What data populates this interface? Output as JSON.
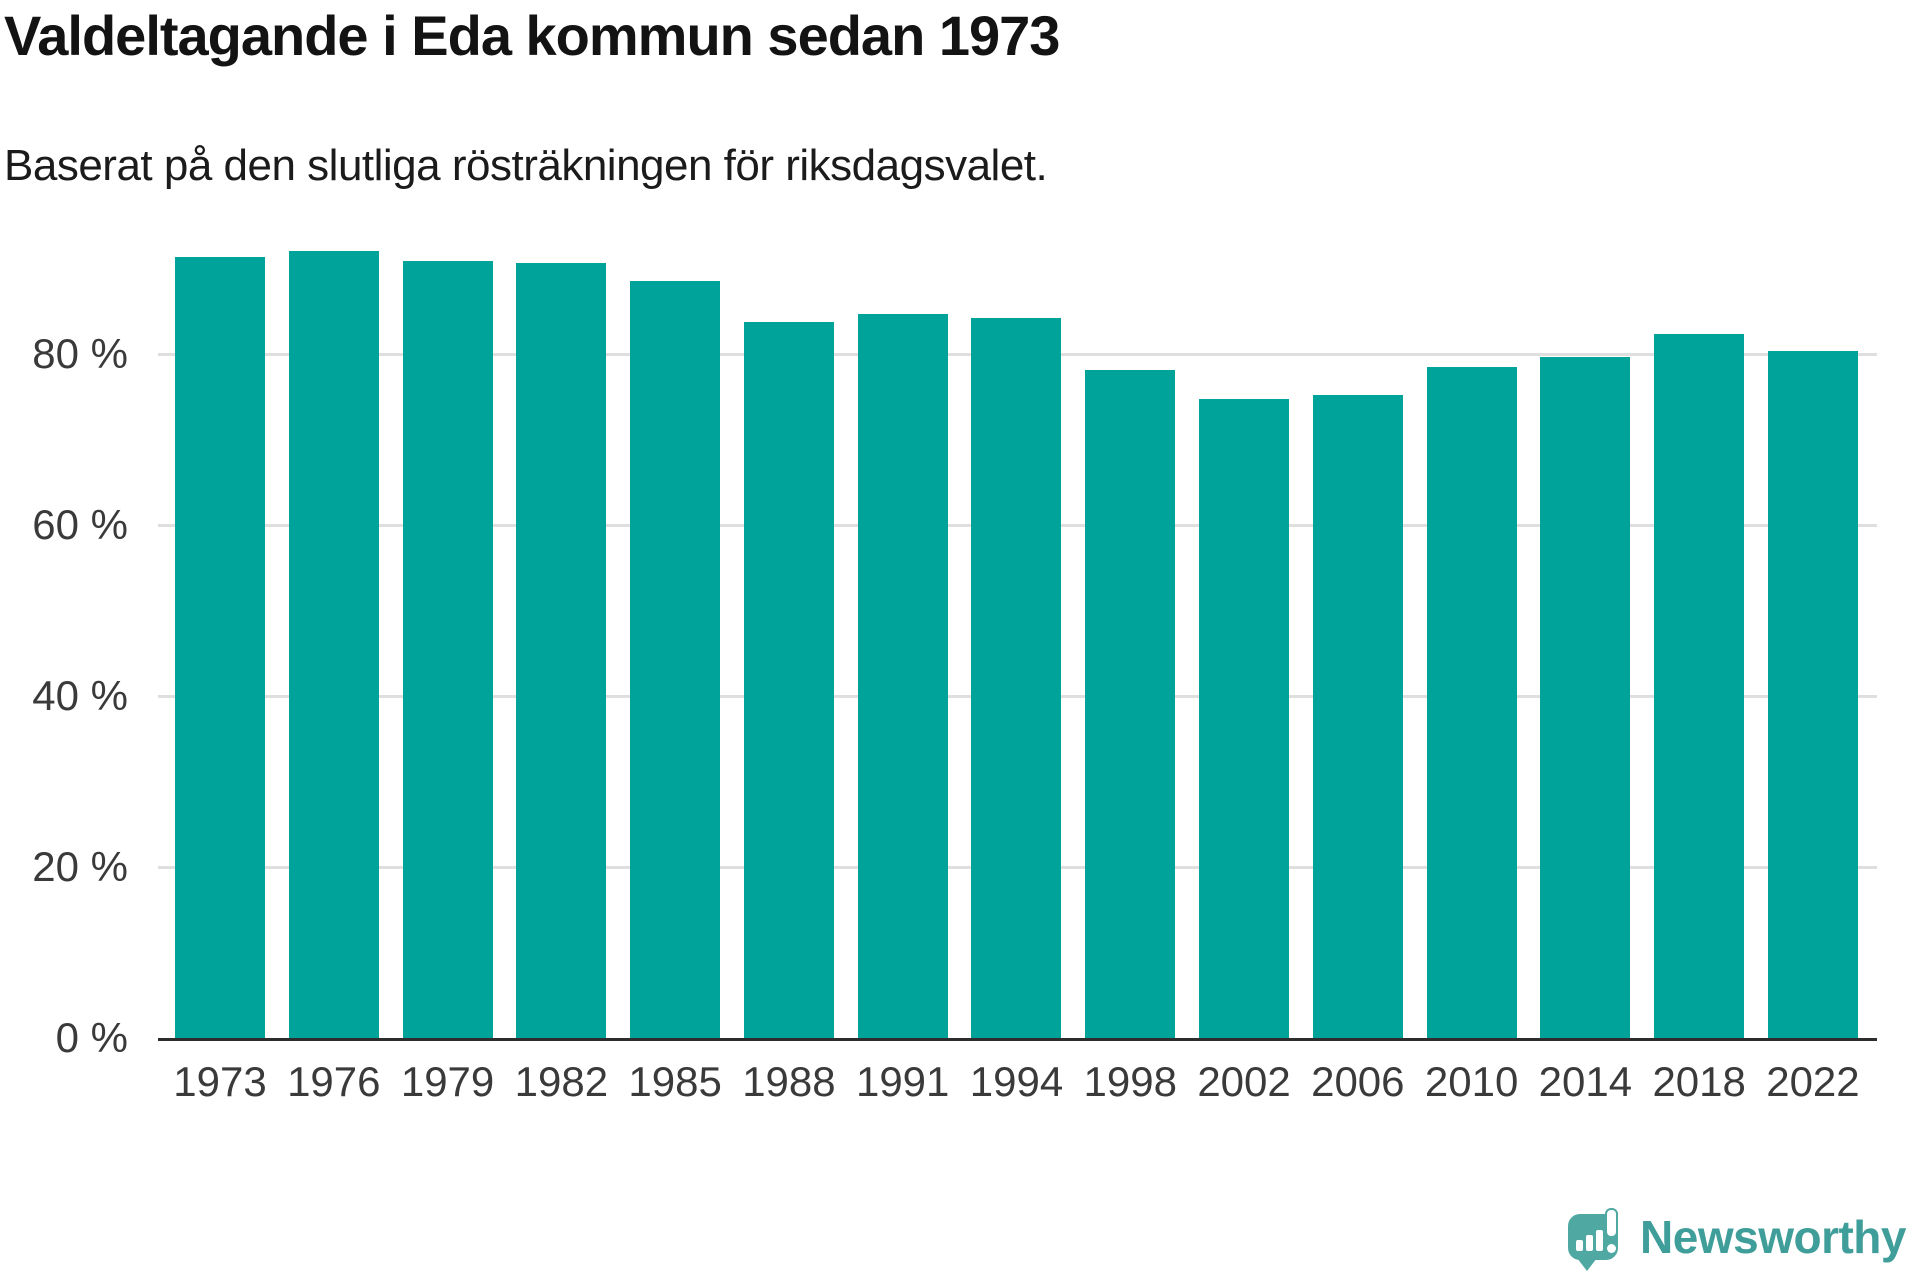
{
  "title": "Valdeltagande i Eda kommun sedan 1973",
  "subtitle": "Baserat på den slutliga rösträkningen för riksdagsvalet.",
  "chart_data": {
    "type": "bar",
    "title": "Valdeltagande i Eda kommun sedan 1973",
    "subtitle": "Baserat på den slutliga rösträkningen för riksdagsvalet.",
    "categories": [
      "1973",
      "1976",
      "1979",
      "1982",
      "1985",
      "1988",
      "1991",
      "1994",
      "1998",
      "2002",
      "2006",
      "2010",
      "2014",
      "2018",
      "2022"
    ],
    "values": [
      91.3,
      92.0,
      90.9,
      90.6,
      88.5,
      83.7,
      84.7,
      84.2,
      78.1,
      74.7,
      75.2,
      78.5,
      79.6,
      82.3,
      80.3
    ],
    "unit": "%",
    "xlabel": "",
    "ylabel": "",
    "ylim": [
      0,
      100
    ],
    "y_ticks": [
      0,
      20,
      40,
      60,
      80
    ],
    "y_tick_format": "{v} %",
    "grid": true,
    "legend_position": "none",
    "bar_color": "#00a399",
    "gridline_color": "#dfdfdf",
    "axis_line_color": "#2d2d2d",
    "tick_label_color": "#3a3a3a"
  },
  "branding": {
    "logo_text": "Newsworthy",
    "logo_icon": "newsworthy-speech-bubble-chart-icon",
    "logo_text_color": "#3f9e99",
    "logo_icon_color": "#4fa8a2"
  }
}
